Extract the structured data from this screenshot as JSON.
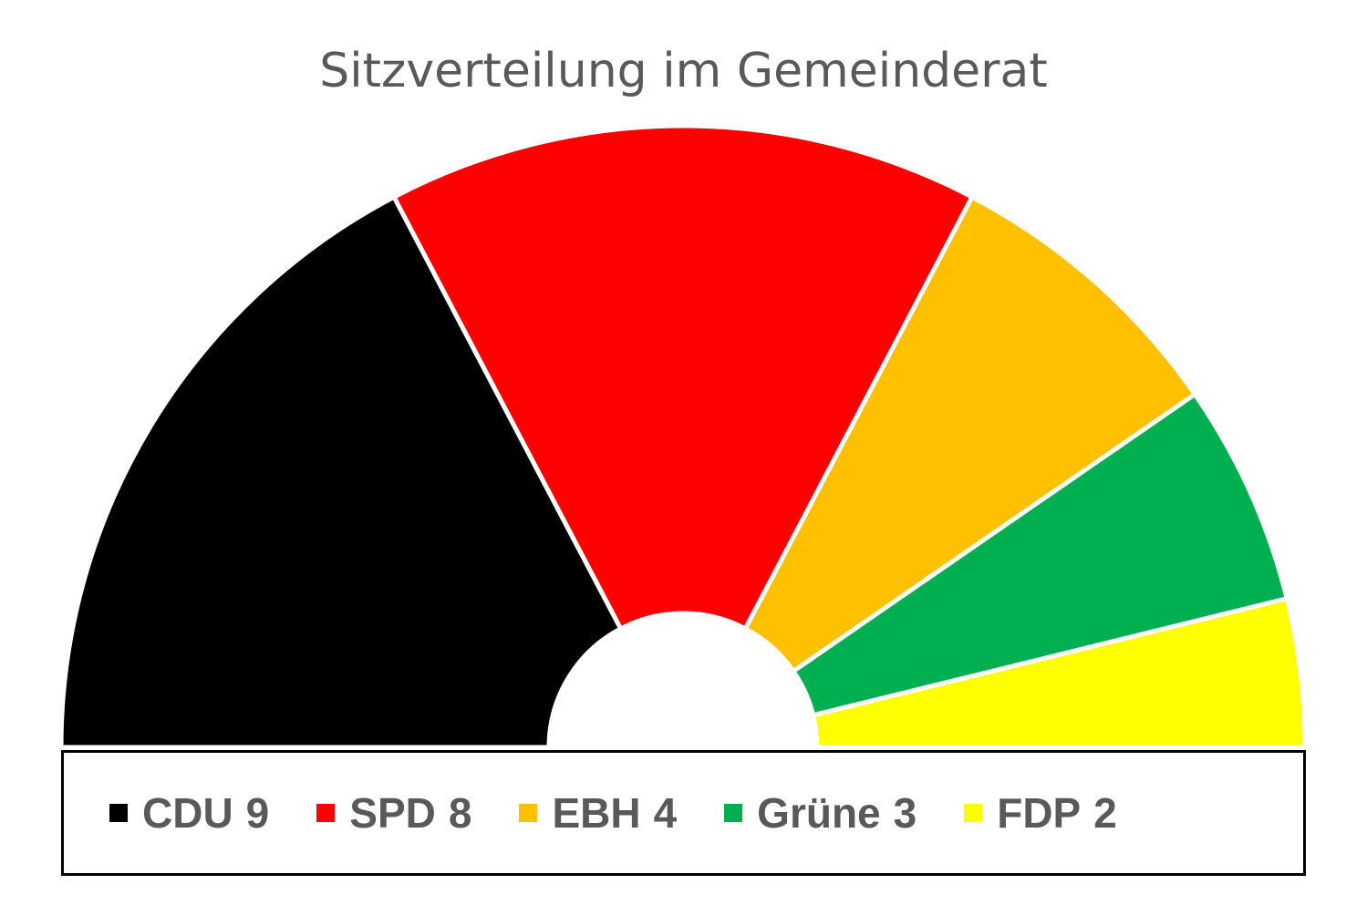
{
  "chart_data": {
    "type": "pie",
    "subtype": "half-donut",
    "title": "Sitzverteilung im Gemeinderat",
    "categories": [
      "CDU",
      "SPD",
      "EBH",
      "Grüne",
      "FDP"
    ],
    "values": [
      9,
      8,
      4,
      3,
      2
    ],
    "colors": [
      "#000000",
      "#ff0000",
      "#ffc000",
      "#00b050",
      "#ffff00"
    ],
    "legend_position": "bottom"
  }
}
